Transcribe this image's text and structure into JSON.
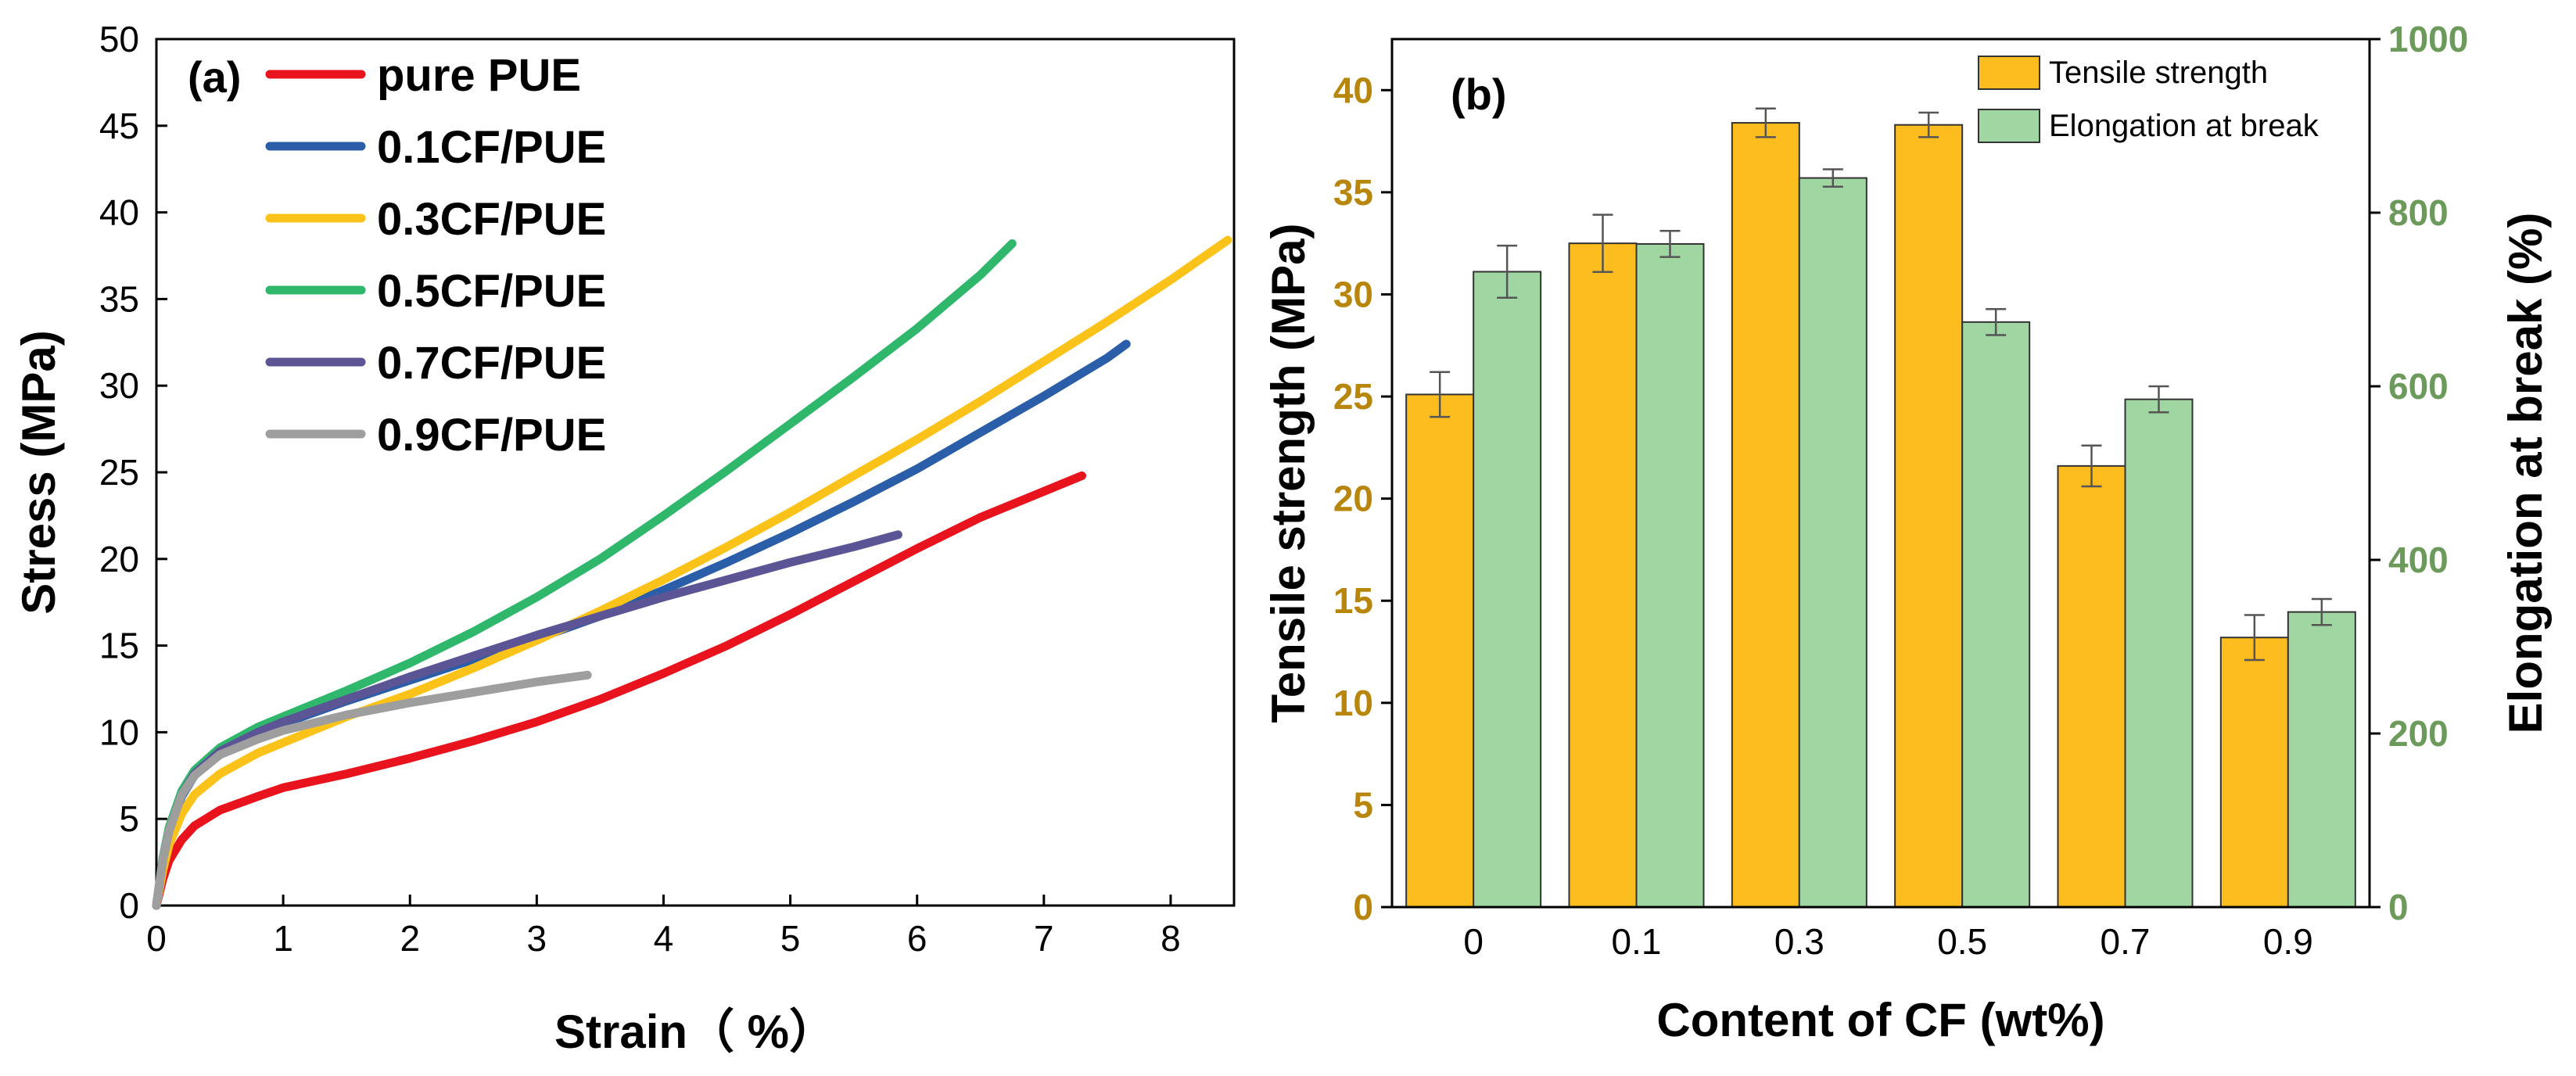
{
  "colors": {
    "pure PUE": "#e8131c",
    "0.1CF/PUE": "#2a5ea8",
    "0.3CF/PUE": "#fbc31a",
    "0.5CF/PUE": "#2fb86b",
    "0.7CF/PUE": "#5b5595",
    "0.9CF/PUE": "#9e9e9e",
    "tensile_bar": "#fdbd1e",
    "elong_bar": "#9fd6a2",
    "left_axis_b": "#b8860b",
    "right_axis_b": "#6b9a5a"
  },
  "chart_data": [
    {
      "type": "line",
      "panel_label": "(a)",
      "xlabel": "Strain（ %）",
      "ylabel": "Stress (MPa)",
      "xlim": [
        0,
        8.5
      ],
      "ylim": [
        0,
        50
      ],
      "xticks": [
        "0",
        "1",
        "2",
        "3",
        "4",
        "5",
        "6",
        "7",
        "8"
      ],
      "yticks": [
        "0",
        "5",
        "10",
        "15",
        "20",
        "25",
        "30",
        "35",
        "40",
        "45",
        "50"
      ],
      "legend_position": "top-left",
      "series": [
        {
          "name": "pure PUE",
          "x": [
            0,
            0.05,
            0.1,
            0.2,
            0.3,
            0.5,
            0.8,
            1.0,
            1.5,
            2.0,
            2.5,
            3.0,
            3.5,
            4.0,
            4.5,
            5.0,
            5.5,
            6.0,
            6.5,
            7.0,
            7.3
          ],
          "y": [
            0,
            1.5,
            2.6,
            3.8,
            4.6,
            5.5,
            6.3,
            6.8,
            7.6,
            8.5,
            9.5,
            10.6,
            11.9,
            13.4,
            15.0,
            16.8,
            18.7,
            20.6,
            22.4,
            23.9,
            24.8
          ]
        },
        {
          "name": "0.1CF/PUE",
          "x": [
            0,
            0.05,
            0.1,
            0.2,
            0.3,
            0.5,
            0.8,
            1.0,
            1.5,
            2.0,
            2.5,
            3.0,
            3.5,
            4.0,
            4.5,
            5.0,
            5.5,
            6.0,
            6.5,
            7.0,
            7.5,
            7.65
          ],
          "y": [
            0,
            2.5,
            4.2,
            6.3,
            7.5,
            8.8,
            10.0,
            10.5,
            11.8,
            13.0,
            14.2,
            15.4,
            16.7,
            18.2,
            19.8,
            21.5,
            23.3,
            25.2,
            27.3,
            29.4,
            31.6,
            32.4
          ]
        },
        {
          "name": "0.3CF/PUE",
          "x": [
            0,
            0.05,
            0.1,
            0.2,
            0.3,
            0.5,
            0.8,
            1.0,
            1.5,
            2.0,
            2.5,
            3.0,
            3.5,
            4.0,
            4.5,
            5.0,
            5.5,
            6.0,
            6.5,
            7.0,
            7.5,
            8.0,
            8.45
          ],
          "y": [
            0,
            2.0,
            3.5,
            5.3,
            6.4,
            7.6,
            8.8,
            9.4,
            10.9,
            12.2,
            13.7,
            15.3,
            17.0,
            18.8,
            20.7,
            22.7,
            24.8,
            26.9,
            29.1,
            31.4,
            33.7,
            36.1,
            38.4
          ]
        },
        {
          "name": "0.5CF/PUE",
          "x": [
            0,
            0.05,
            0.1,
            0.2,
            0.3,
            0.5,
            0.8,
            1.0,
            1.5,
            2.0,
            2.5,
            3.0,
            3.5,
            4.0,
            4.5,
            5.0,
            5.5,
            6.0,
            6.5,
            6.75
          ],
          "y": [
            0,
            2.7,
            4.5,
            6.6,
            7.8,
            9.1,
            10.3,
            10.9,
            12.4,
            14.0,
            15.8,
            17.8,
            20.0,
            22.5,
            25.1,
            27.8,
            30.5,
            33.3,
            36.4,
            38.2
          ]
        },
        {
          "name": "0.7CF/PUE",
          "x": [
            0,
            0.05,
            0.1,
            0.2,
            0.3,
            0.5,
            0.8,
            1.0,
            1.5,
            2.0,
            2.5,
            3.0,
            3.5,
            4.0,
            4.5,
            5.0,
            5.5,
            5.85
          ],
          "y": [
            0,
            2.6,
            4.3,
            6.4,
            7.6,
            8.9,
            10.0,
            10.6,
            11.9,
            13.2,
            14.4,
            15.6,
            16.7,
            17.8,
            18.8,
            19.8,
            20.7,
            21.4
          ]
        },
        {
          "name": "0.9CF/PUE",
          "x": [
            0,
            0.05,
            0.1,
            0.2,
            0.3,
            0.5,
            0.8,
            1.0,
            1.5,
            2.0,
            2.5,
            3.0,
            3.4
          ],
          "y": [
            0,
            2.6,
            4.3,
            6.4,
            7.5,
            8.7,
            9.6,
            10.1,
            11.0,
            11.7,
            12.3,
            12.9,
            13.3
          ]
        }
      ]
    },
    {
      "type": "bar",
      "panel_label": "(b)",
      "xlabel": "Content of CF (wt%)",
      "ylabel": "Tensile strength (MPa)",
      "y2label": "Elongation at break (%)",
      "categories": [
        "0",
        "0.1",
        "0.3",
        "0.5",
        "0.7",
        "0.9"
      ],
      "ylim": [
        0,
        42.5
      ],
      "y2lim": [
        0,
        1000
      ],
      "yticks": [
        "0",
        "5",
        "10",
        "15",
        "20",
        "25",
        "30",
        "35",
        "40"
      ],
      "y2ticks": [
        "0",
        "200",
        "400",
        "600",
        "800",
        "1000"
      ],
      "legend_position": "top-right",
      "series": [
        {
          "name": "Tensile strength",
          "axis": "left",
          "values": [
            25.1,
            32.5,
            38.4,
            38.3,
            21.6,
            13.2
          ],
          "errors": [
            1.1,
            1.4,
            0.7,
            0.6,
            1.0,
            1.1
          ]
        },
        {
          "name": "Elongation at break",
          "axis": "right",
          "values": [
            732,
            764,
            840,
            674,
            585,
            340
          ],
          "errors": [
            30,
            15,
            10,
            15,
            15,
            15
          ]
        }
      ]
    }
  ]
}
